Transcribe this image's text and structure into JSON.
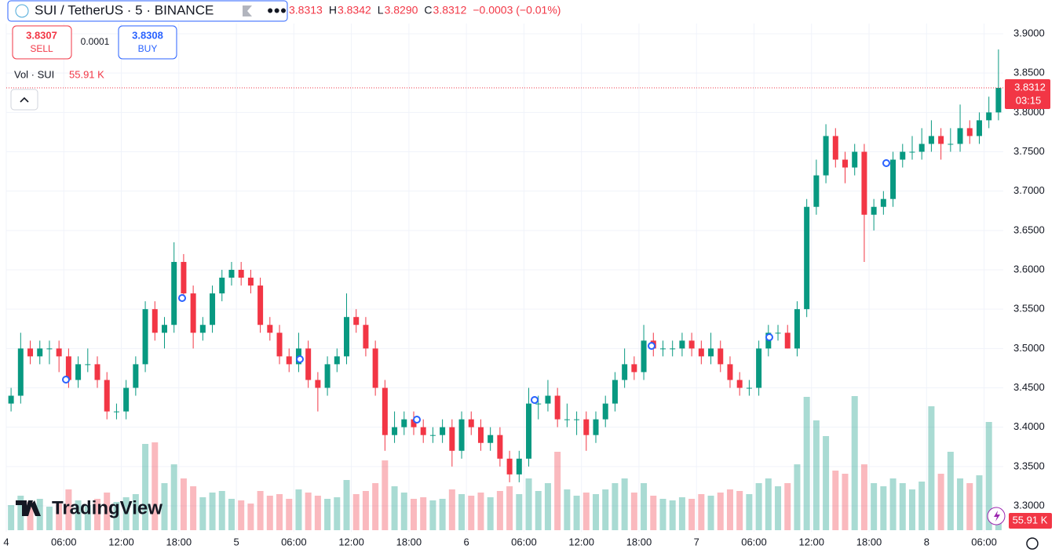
{
  "chart_data": {
    "type": "candlestick",
    "symbol": "SUI / TetherUS · 5 · BINANCE",
    "legend": [
      "3.8313",
      "H",
      "3.8342",
      "L",
      "3.8290",
      "C",
      "3.8312",
      "−0.0003 (−0.01%)"
    ],
    "sell": {
      "price": "3.8307",
      "label": "SELL"
    },
    "spread": "0.0001",
    "buy": {
      "price": "3.8308",
      "label": "BUY"
    },
    "volume_title": "Vol · SUI",
    "volume_last": "55.91 K",
    "last_price": {
      "value": 3.8312,
      "label": "3.8312",
      "countdown": "03:15"
    },
    "watermark": "TradingView",
    "up_color": "#089981",
    "down_color": "#f23645",
    "grid": true,
    "xlim": [
      0,
      104
    ],
    "xticks": [
      {
        "value": 0,
        "label": "4"
      },
      {
        "value": 6,
        "label": "06:00"
      },
      {
        "value": 12,
        "label": "12:00"
      },
      {
        "value": 18,
        "label": "18:00"
      },
      {
        "value": 24,
        "label": "5"
      },
      {
        "value": 30,
        "label": "06:00"
      },
      {
        "value": 36,
        "label": "12:00"
      },
      {
        "value": 42,
        "label": "18:00"
      },
      {
        "value": 48,
        "label": "6"
      },
      {
        "value": 54,
        "label": "06:00"
      },
      {
        "value": 60,
        "label": "12:00"
      },
      {
        "value": 66,
        "label": "18:00"
      },
      {
        "value": 72,
        "label": "7"
      },
      {
        "value": 78,
        "label": "06:00"
      },
      {
        "value": 84,
        "label": "12:00"
      },
      {
        "value": 90,
        "label": "18:00"
      },
      {
        "value": 96,
        "label": "8"
      },
      {
        "value": 102,
        "label": "06:00"
      }
    ],
    "ylim": [
      3.28,
      3.92
    ],
    "yticks": [
      {
        "value": 3.3,
        "label": "3.3000"
      },
      {
        "value": 3.35,
        "label": "3.3500"
      },
      {
        "value": 3.4,
        "label": "3.4000"
      },
      {
        "value": 3.45,
        "label": "3.4500"
      },
      {
        "value": 3.5,
        "label": "3.5000"
      },
      {
        "value": 3.55,
        "label": "3.5500"
      },
      {
        "value": 3.6,
        "label": "3.6000"
      },
      {
        "value": 3.65,
        "label": "3.6500"
      },
      {
        "value": 3.7,
        "label": "3.7000"
      },
      {
        "value": 3.75,
        "label": "3.7500"
      },
      {
        "value": 3.8,
        "label": "3.8000"
      },
      {
        "value": 3.85,
        "label": "3.8500"
      },
      {
        "value": 3.9,
        "label": "3.9000"
      }
    ],
    "volume_lim": [
      0,
      1500
    ],
    "x": [
      0,
      1,
      2,
      3,
      4,
      5,
      6,
      7,
      8,
      9,
      10,
      11,
      12,
      13,
      14,
      15,
      16,
      17,
      18,
      19,
      20,
      21,
      22,
      23,
      24,
      25,
      26,
      27,
      28,
      29,
      30,
      31,
      32,
      33,
      34,
      35,
      36,
      37,
      38,
      39,
      40,
      41,
      42,
      43,
      44,
      45,
      46,
      47,
      48,
      49,
      50,
      51,
      52,
      53,
      54,
      55,
      56,
      57,
      58,
      59,
      60,
      61,
      62,
      63,
      64,
      65,
      66,
      67,
      68,
      69,
      70,
      71,
      72,
      73,
      74,
      75,
      76,
      77,
      78,
      79,
      80,
      81,
      82,
      83,
      84,
      85,
      86,
      87,
      88,
      89,
      90,
      91,
      92,
      93,
      94,
      95,
      96,
      97,
      98,
      99,
      100,
      101,
      102,
      103
    ],
    "candles": [
      [
        3.43,
        3.45,
        3.42,
        3.44
      ],
      [
        3.44,
        3.52,
        3.43,
        3.5
      ],
      [
        3.5,
        3.51,
        3.48,
        3.49
      ],
      [
        3.49,
        3.51,
        3.48,
        3.5
      ],
      [
        3.5,
        3.51,
        3.48,
        3.5
      ],
      [
        3.5,
        3.51,
        3.47,
        3.49
      ],
      [
        3.49,
        3.5,
        3.45,
        3.46
      ],
      [
        3.46,
        3.49,
        3.45,
        3.48
      ],
      [
        3.48,
        3.5,
        3.47,
        3.48
      ],
      [
        3.48,
        3.49,
        3.45,
        3.46
      ],
      [
        3.46,
        3.47,
        3.41,
        3.42
      ],
      [
        3.42,
        3.43,
        3.41,
        3.42
      ],
      [
        3.42,
        3.46,
        3.41,
        3.45
      ],
      [
        3.45,
        3.49,
        3.44,
        3.48
      ],
      [
        3.48,
        3.56,
        3.47,
        3.55
      ],
      [
        3.55,
        3.56,
        3.51,
        3.52
      ],
      [
        3.52,
        3.54,
        3.5,
        3.53
      ],
      [
        3.53,
        3.635,
        3.52,
        3.61
      ],
      [
        3.61,
        3.62,
        3.56,
        3.57
      ],
      [
        3.57,
        3.58,
        3.5,
        3.52
      ],
      [
        3.52,
        3.54,
        3.51,
        3.53
      ],
      [
        3.53,
        3.58,
        3.52,
        3.57
      ],
      [
        3.57,
        3.6,
        3.56,
        3.59
      ],
      [
        3.59,
        3.61,
        3.58,
        3.6
      ],
      [
        3.6,
        3.61,
        3.58,
        3.59
      ],
      [
        3.59,
        3.6,
        3.57,
        3.58
      ],
      [
        3.58,
        3.59,
        3.52,
        3.53
      ],
      [
        3.53,
        3.54,
        3.51,
        3.52
      ],
      [
        3.52,
        3.53,
        3.48,
        3.49
      ],
      [
        3.49,
        3.5,
        3.47,
        3.48
      ],
      [
        3.48,
        3.52,
        3.47,
        3.5
      ],
      [
        3.5,
        3.51,
        3.45,
        3.46
      ],
      [
        3.46,
        3.47,
        3.42,
        3.45
      ],
      [
        3.45,
        3.49,
        3.44,
        3.48
      ],
      [
        3.48,
        3.5,
        3.47,
        3.49
      ],
      [
        3.49,
        3.57,
        3.48,
        3.54
      ],
      [
        3.54,
        3.55,
        3.52,
        3.53
      ],
      [
        3.53,
        3.54,
        3.49,
        3.5
      ],
      [
        3.5,
        3.51,
        3.44,
        3.45
      ],
      [
        3.45,
        3.46,
        3.37,
        3.39
      ],
      [
        3.39,
        3.42,
        3.38,
        3.4
      ],
      [
        3.4,
        3.42,
        3.39,
        3.41
      ],
      [
        3.41,
        3.42,
        3.39,
        3.4
      ],
      [
        3.4,
        3.41,
        3.38,
        3.39
      ],
      [
        3.39,
        3.4,
        3.38,
        3.39
      ],
      [
        3.39,
        3.41,
        3.38,
        3.4
      ],
      [
        3.4,
        3.41,
        3.35,
        3.37
      ],
      [
        3.37,
        3.42,
        3.36,
        3.41
      ],
      [
        3.41,
        3.42,
        3.39,
        3.4
      ],
      [
        3.4,
        3.41,
        3.37,
        3.38
      ],
      [
        3.38,
        3.4,
        3.37,
        3.39
      ],
      [
        3.39,
        3.4,
        3.35,
        3.36
      ],
      [
        3.36,
        3.37,
        3.33,
        3.34
      ],
      [
        3.34,
        3.37,
        3.33,
        3.36
      ],
      [
        3.36,
        3.45,
        3.35,
        3.43
      ],
      [
        3.43,
        3.44,
        3.41,
        3.43
      ],
      [
        3.43,
        3.46,
        3.42,
        3.44
      ],
      [
        3.44,
        3.45,
        3.4,
        3.41
      ],
      [
        3.41,
        3.43,
        3.4,
        3.41
      ],
      [
        3.41,
        3.42,
        3.39,
        3.41
      ],
      [
        3.41,
        3.42,
        3.37,
        3.39
      ],
      [
        3.39,
        3.42,
        3.38,
        3.41
      ],
      [
        3.41,
        3.44,
        3.4,
        3.43
      ],
      [
        3.43,
        3.47,
        3.42,
        3.46
      ],
      [
        3.46,
        3.5,
        3.45,
        3.48
      ],
      [
        3.48,
        3.49,
        3.46,
        3.47
      ],
      [
        3.47,
        3.53,
        3.46,
        3.51
      ],
      [
        3.51,
        3.52,
        3.49,
        3.5
      ],
      [
        3.5,
        3.51,
        3.49,
        3.5
      ],
      [
        3.5,
        3.51,
        3.49,
        3.5
      ],
      [
        3.5,
        3.52,
        3.49,
        3.51
      ],
      [
        3.51,
        3.52,
        3.49,
        3.5
      ],
      [
        3.5,
        3.51,
        3.48,
        3.49
      ],
      [
        3.49,
        3.52,
        3.48,
        3.5
      ],
      [
        3.5,
        3.51,
        3.47,
        3.48
      ],
      [
        3.48,
        3.49,
        3.45,
        3.46
      ],
      [
        3.46,
        3.47,
        3.44,
        3.45
      ],
      [
        3.45,
        3.46,
        3.44,
        3.45
      ],
      [
        3.45,
        3.51,
        3.44,
        3.5
      ],
      [
        3.5,
        3.53,
        3.49,
        3.52
      ],
      [
        3.52,
        3.53,
        3.51,
        3.52
      ],
      [
        3.52,
        3.53,
        3.5,
        3.5
      ],
      [
        3.5,
        3.56,
        3.49,
        3.55
      ],
      [
        3.55,
        3.69,
        3.54,
        3.68
      ],
      [
        3.68,
        3.74,
        3.67,
        3.72
      ],
      [
        3.72,
        3.785,
        3.71,
        3.77
      ],
      [
        3.77,
        3.78,
        3.73,
        3.74
      ],
      [
        3.74,
        3.75,
        3.71,
        3.73
      ],
      [
        3.73,
        3.76,
        3.72,
        3.75
      ],
      [
        3.75,
        3.76,
        3.61,
        3.67
      ],
      [
        3.67,
        3.69,
        3.65,
        3.68
      ],
      [
        3.68,
        3.7,
        3.67,
        3.69
      ],
      [
        3.69,
        3.75,
        3.68,
        3.74
      ],
      [
        3.74,
        3.76,
        3.73,
        3.75
      ],
      [
        3.75,
        3.77,
        3.74,
        3.75
      ],
      [
        3.75,
        3.78,
        3.74,
        3.76
      ],
      [
        3.76,
        3.79,
        3.75,
        3.77
      ],
      [
        3.77,
        3.78,
        3.74,
        3.76
      ],
      [
        3.76,
        3.78,
        3.75,
        3.76
      ],
      [
        3.76,
        3.81,
        3.75,
        3.78
      ],
      [
        3.78,
        3.79,
        3.76,
        3.77
      ],
      [
        3.77,
        3.8,
        3.76,
        3.79
      ],
      [
        3.79,
        3.82,
        3.78,
        3.8
      ],
      [
        3.8,
        3.88,
        3.79,
        3.8312
      ]
    ],
    "volumes": [
      160,
      220,
      180,
      200,
      150,
      170,
      260,
      190,
      160,
      200,
      240,
      180,
      210,
      230,
      550,
      560,
      300,
      420,
      330,
      280,
      210,
      240,
      250,
      200,
      190,
      170,
      250,
      220,
      230,
      200,
      260,
      240,
      220,
      200,
      210,
      320,
      230,
      250,
      300,
      445,
      280,
      240,
      200,
      210,
      190,
      200,
      260,
      230,
      220,
      240,
      210,
      250,
      280,
      230,
      330,
      250,
      300,
      500,
      260,
      220,
      240,
      230,
      260,
      300,
      330,
      240,
      300,
      220,
      200,
      190,
      210,
      200,
      230,
      220,
      240,
      260,
      250,
      230,
      300,
      330,
      280,
      300,
      420,
      850,
      700,
      600,
      380,
      360,
      855,
      420,
      300,
      280,
      330,
      300,
      260,
      310,
      790,
      360,
      500,
      330,
      300,
      350,
      690,
      55.91
    ]
  }
}
